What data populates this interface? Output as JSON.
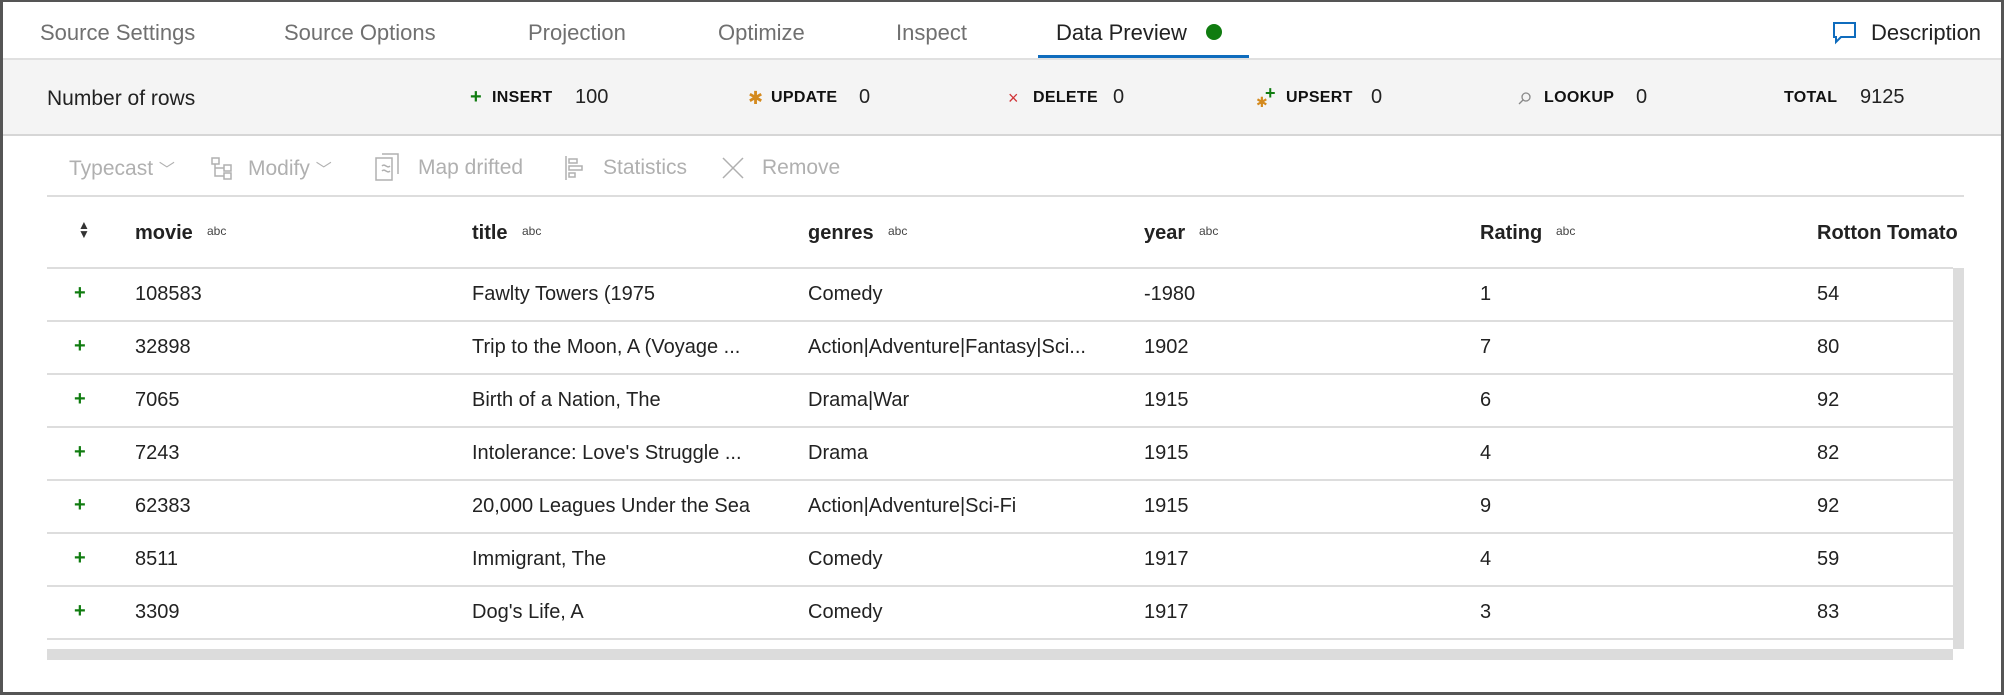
{
  "tabs": [
    {
      "label": "Source Settings"
    },
    {
      "label": "Source Options"
    },
    {
      "label": "Projection"
    },
    {
      "label": "Optimize"
    },
    {
      "label": "Inspect"
    },
    {
      "label": "Data Preview",
      "active": true,
      "status_color": "#107c10"
    }
  ],
  "description_label": "Description",
  "stats": {
    "title": "Number of rows",
    "insert": {
      "label": "INSERT",
      "value": "100"
    },
    "update": {
      "label": "UPDATE",
      "value": "0"
    },
    "delete": {
      "label": "DELETE",
      "value": "0"
    },
    "upsert": {
      "label": "UPSERT",
      "value": "0"
    },
    "lookup": {
      "label": "LOOKUP",
      "value": "0"
    },
    "total": {
      "label": "TOTAL",
      "value": "9125"
    }
  },
  "toolbar": {
    "typecast": "Typecast",
    "modify": "Modify",
    "map_drifted": "Map drifted",
    "statistics": "Statistics",
    "remove": "Remove"
  },
  "table": {
    "type_tag": "abc",
    "columns": [
      "movie",
      "title",
      "genres",
      "year",
      "Rating",
      "Rotton Tomato"
    ],
    "rows": [
      [
        "108583",
        "Fawlty Towers (1975",
        "Comedy",
        "-1980",
        "1",
        "54"
      ],
      [
        "32898",
        "Trip to the Moon, A (Voyage ...",
        "Action|Adventure|Fantasy|Sci...",
        "1902",
        "7",
        "80"
      ],
      [
        "7065",
        "Birth of a Nation, The",
        "Drama|War",
        "1915",
        "6",
        "92"
      ],
      [
        "7243",
        "Intolerance: Love's Struggle ...",
        "Drama",
        "1915",
        "4",
        "82"
      ],
      [
        "62383",
        "20,000 Leagues Under the Sea",
        "Action|Adventure|Sci-Fi",
        "1915",
        "9",
        "92"
      ],
      [
        "8511",
        "Immigrant, The",
        "Comedy",
        "1917",
        "4",
        "59"
      ],
      [
        "3309",
        "Dog's Life, A",
        "Comedy",
        "1917",
        "3",
        "83"
      ]
    ]
  },
  "colors": {
    "accent": "#0f6cbd",
    "insert": "#107c10",
    "update": "#d48a1e",
    "delete": "#d13438"
  }
}
